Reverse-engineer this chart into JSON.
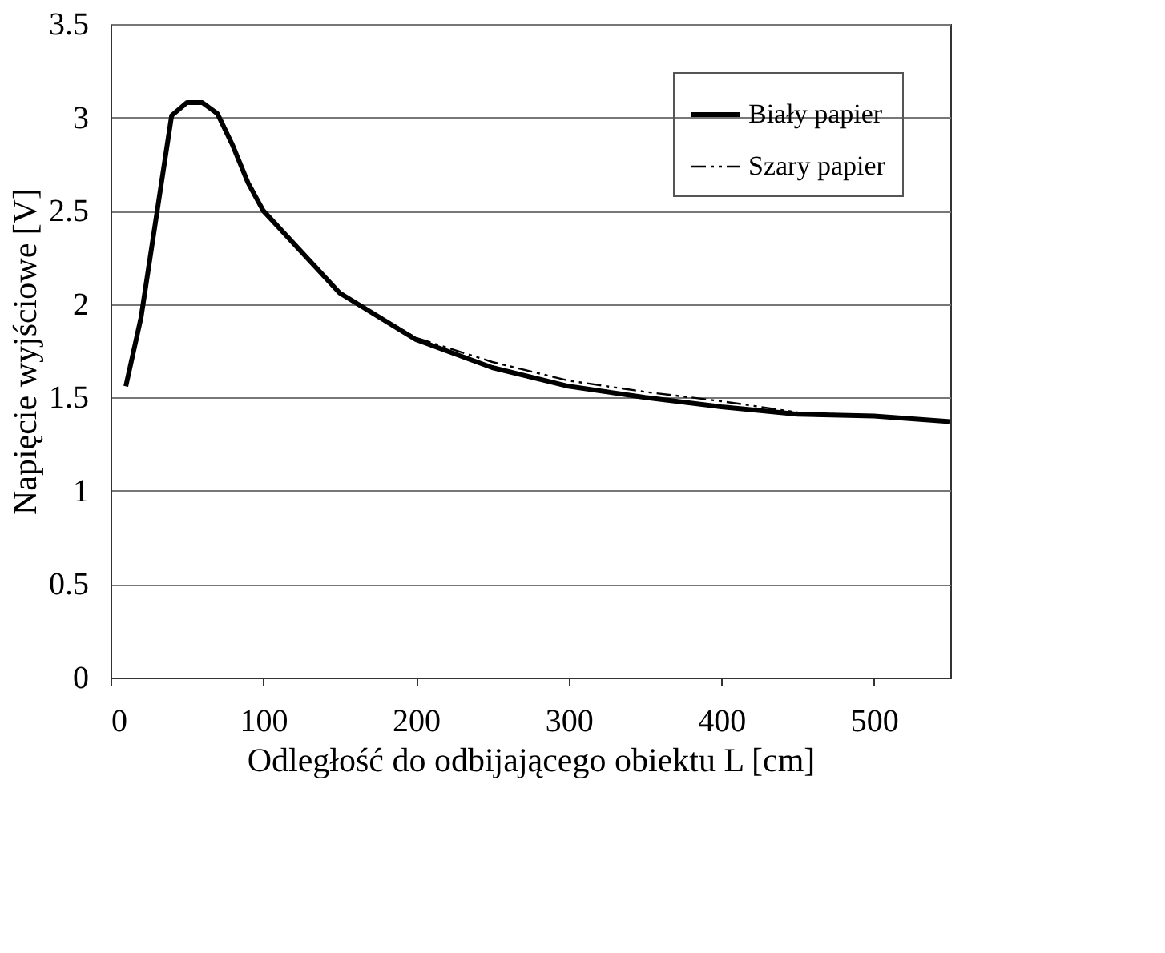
{
  "chart_data": {
    "type": "line",
    "xlabel": "Odległość do odbijającego obiektu L [cm]",
    "ylabel": "Napięcie wyjściowe [V]",
    "x": [
      10,
      20,
      30,
      40,
      50,
      60,
      70,
      80,
      90,
      100,
      150,
      200,
      250,
      300,
      350,
      400,
      450,
      500,
      550
    ],
    "series": [
      {
        "name": "Biały papier",
        "color": "#000000",
        "line_style": "solid",
        "values": [
          1.56,
          1.93,
          2.47,
          3.01,
          3.08,
          3.08,
          3.02,
          2.85,
          2.65,
          2.5,
          2.06,
          1.81,
          1.66,
          1.56,
          1.5,
          1.45,
          1.41,
          1.4,
          1.37
        ]
      },
      {
        "name": "Szary papier",
        "color": "#000000",
        "line_style": "dashed",
        "values": [
          1.58,
          1.95,
          2.5,
          3.01,
          3.08,
          3.08,
          3.02,
          2.85,
          2.65,
          2.5,
          2.06,
          1.82,
          1.69,
          1.59,
          1.53,
          1.48,
          1.42,
          1.4,
          1.37
        ]
      }
    ],
    "xlim": [
      0,
      550
    ],
    "xticks": [
      0,
      100,
      200,
      300,
      400,
      500
    ],
    "ylim": [
      0,
      3.5
    ],
    "yticks": [
      0,
      0.5,
      1,
      1.5,
      2,
      2.5,
      3,
      3.5
    ],
    "grid": "y",
    "legend": "top right",
    "marker": "none"
  }
}
